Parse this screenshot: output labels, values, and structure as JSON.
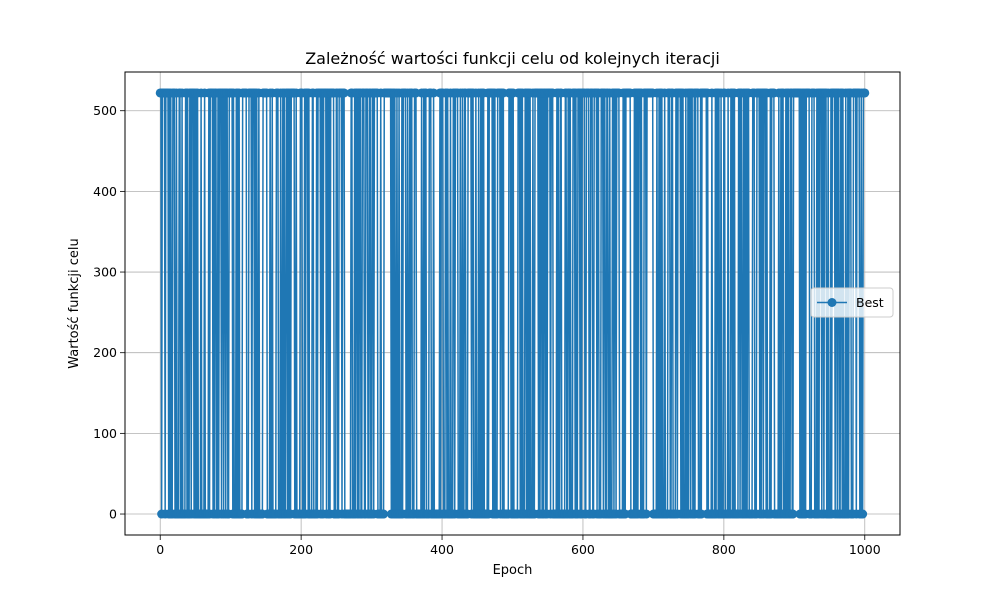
{
  "chart_data": {
    "type": "line",
    "title": "Zależność wartości funkcji celu od kolejnych iteracji",
    "xlabel": "Epoch",
    "ylabel": "Wartość funkcji celu",
    "xlim": [
      -50,
      1050
    ],
    "ylim": [
      -26,
      548
    ],
    "x_ticks": [
      0,
      200,
      400,
      600,
      800,
      1000
    ],
    "y_ticks": [
      0,
      100,
      200,
      300,
      400,
      500
    ],
    "grid": true,
    "legend_position": "center-right",
    "series": [
      {
        "name": "Best",
        "color": "#1f77b4",
        "marker": "circle",
        "x_start": 0,
        "x_end": 1000,
        "low_value": 0,
        "high_value": 522,
        "pattern": "values oscillate between approximately 0 and 522 on nearly every epoch",
        "first_value": 522,
        "last_value": 522
      }
    ]
  }
}
